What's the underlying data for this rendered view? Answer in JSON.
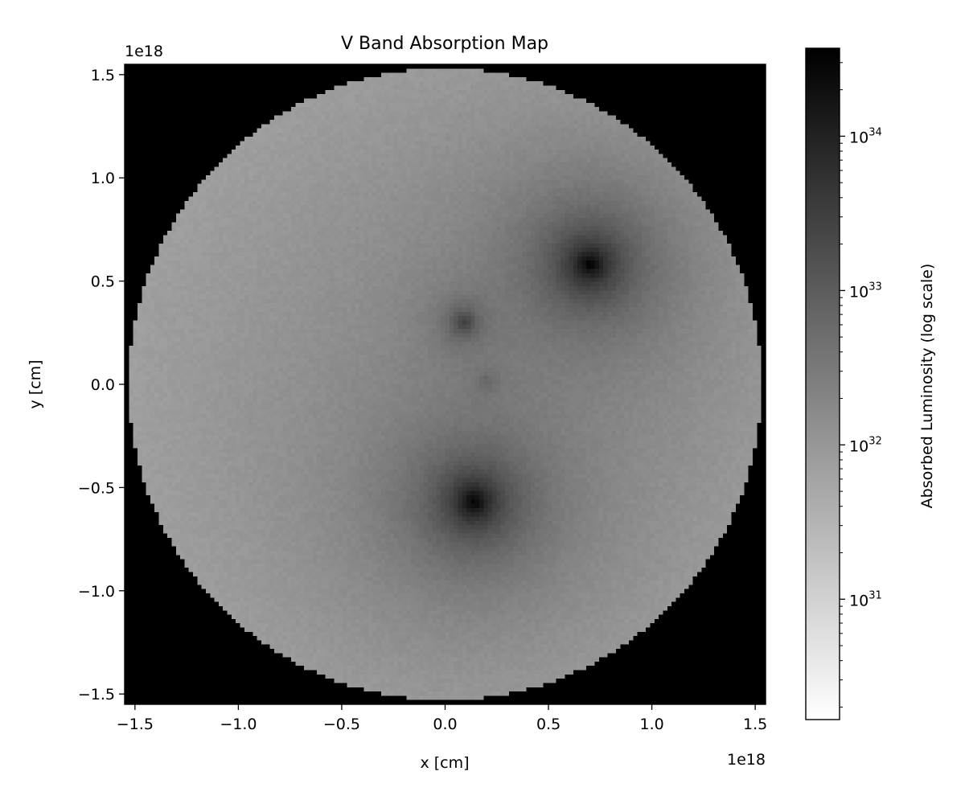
{
  "chart_data": {
    "type": "heatmap",
    "title": "V Band Absorption Map",
    "xlabel": "x [cm]",
    "ylabel": "y [cm]",
    "x_offset_label": "1e18",
    "y_offset_label": "1e18",
    "xlim": [
      -1.55,
      1.55
    ],
    "ylim": [
      -1.55,
      1.55
    ],
    "x_ticks": [
      -1.5,
      -1.0,
      -0.5,
      0.0,
      0.5,
      1.0,
      1.5
    ],
    "x_tick_labels": [
      "−1.5",
      "−1.0",
      "−0.5",
      "0.0",
      "0.5",
      "1.0",
      "1.5"
    ],
    "y_ticks": [
      -1.5,
      -1.0,
      -0.5,
      0.0,
      0.5,
      1.0,
      1.5
    ],
    "y_tick_labels": [
      "−1.5",
      "−1.0",
      "−0.5",
      "0.0",
      "0.5",
      "1.0",
      "1.5"
    ],
    "colormap": "gray_r",
    "log_scale": true,
    "grid": false,
    "domain_radius": 1.53,
    "outside_color": "#000000",
    "background_level_log10": 31.9,
    "sources": [
      {
        "x": 0.7,
        "y": 0.58,
        "peak_log10": 34.5
      },
      {
        "x": 0.14,
        "y": -0.57,
        "peak_log10": 34.5
      },
      {
        "x": 0.09,
        "y": 0.3,
        "peak_log10": 33.4
      },
      {
        "x": 0.2,
        "y": 0.01,
        "peak_log10": 32.6
      }
    ],
    "colorbar": {
      "label": "Absorbed Luminosity (log scale)",
      "vmin_log10": 30.22,
      "vmax_log10": 34.57,
      "major_ticks_log10": [
        31,
        32,
        33,
        34
      ],
      "major_tick_labels": [
        "10",
        "10",
        "10",
        "10"
      ],
      "major_tick_exponents": [
        "31",
        "32",
        "33",
        "34"
      ]
    }
  }
}
